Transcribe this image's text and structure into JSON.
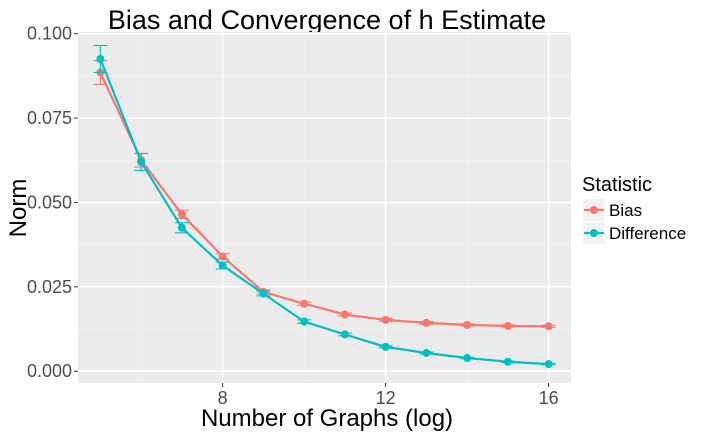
{
  "chart_data": {
    "type": "line",
    "title": "Bias and Convergence of h Estimate",
    "xlabel": "Number of Graphs (log)",
    "ylabel": "Norm",
    "xlim": [
      4.45,
      16.55
    ],
    "ylim": [
      -0.0035,
      0.1005
    ],
    "x_ticks": [
      8,
      12,
      16
    ],
    "x_tick_labels": [
      "8",
      "12",
      "16"
    ],
    "y_ticks": [
      0.0,
      0.025,
      0.05,
      0.075,
      0.1
    ],
    "y_tick_labels": [
      "0.000",
      "0.025",
      "0.050",
      "0.075",
      "0.100"
    ],
    "grid": true,
    "legend": {
      "title": "Statistic",
      "position": "right"
    },
    "x": [
      5,
      6,
      7,
      8,
      9,
      10,
      11,
      12,
      13,
      14,
      15,
      16
    ],
    "series": [
      {
        "name": "Bias",
        "color": "#F8766D",
        "values": [
          0.0885,
          0.0625,
          0.0465,
          0.034,
          0.0235,
          0.02,
          0.0168,
          0.0152,
          0.0143,
          0.0137,
          0.0134,
          0.0133
        ],
        "err": [
          0.0035,
          0.002,
          0.0012,
          0.0008,
          0.0006,
          0.0005,
          0.0004,
          0.0004,
          0.0004,
          0.0003,
          0.0003,
          0.0003
        ]
      },
      {
        "name": "Difference",
        "color": "#00BFC4",
        "values": [
          0.0925,
          0.062,
          0.0425,
          0.0313,
          0.023,
          0.0147,
          0.0109,
          0.0072,
          0.0054,
          0.0039,
          0.0028,
          0.0021
        ],
        "err": [
          0.004,
          0.0025,
          0.0015,
          0.001,
          0.0007,
          0.0005,
          0.0004,
          0.0003,
          0.0003,
          0.0002,
          0.0002,
          0.0002
        ]
      }
    ]
  }
}
